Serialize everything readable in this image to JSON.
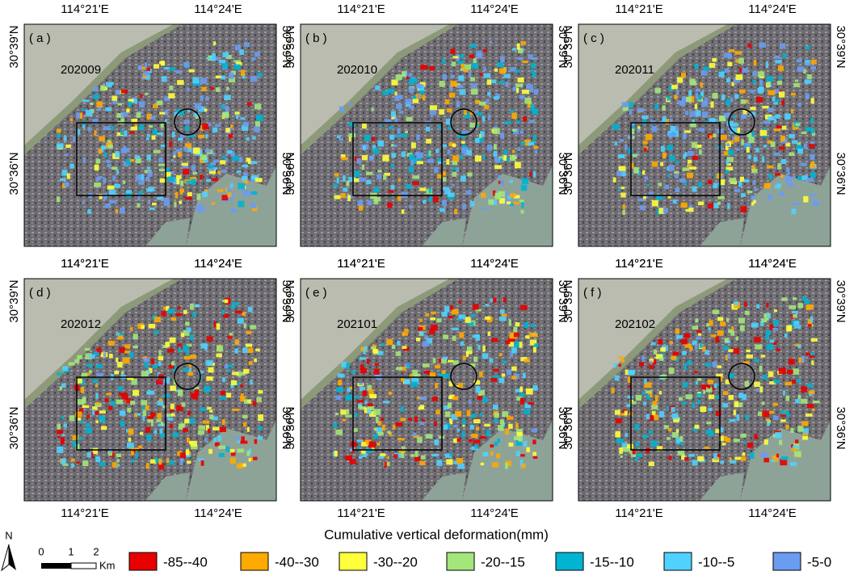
{
  "panels": [
    {
      "letter": "( a )",
      "date": "202009"
    },
    {
      "letter": "( b )",
      "date": "202010"
    },
    {
      "letter": "( c )",
      "date": "202011"
    },
    {
      "letter": "( d )",
      "date": "202012"
    },
    {
      "letter": "( e )",
      "date": "202101"
    },
    {
      "letter": "( f )",
      "date": "202102"
    }
  ],
  "axis_labels": {
    "lon": [
      "114°21'E",
      "114°24'E"
    ],
    "lat": [
      "30°39'N",
      "30°36'N"
    ]
  },
  "legend": {
    "title": "Cumulative vertical deformation(mm)",
    "items": [
      {
        "label": "-85--40",
        "color": "#e60000"
      },
      {
        "label": "-40--30",
        "color": "#ffaa00"
      },
      {
        "label": "-30--20",
        "color": "#ffff3c"
      },
      {
        "label": "-20--15",
        "color": "#a3e67a"
      },
      {
        "label": "-15--10",
        "color": "#00b4d2"
      },
      {
        "label": "-10--5",
        "color": "#4fd2ff"
      },
      {
        "label": "-5-0",
        "color": "#6a9cf0"
      }
    ]
  },
  "north": "N",
  "scale": {
    "ticks": [
      "0",
      "1",
      "2"
    ],
    "unit": "Km"
  }
}
